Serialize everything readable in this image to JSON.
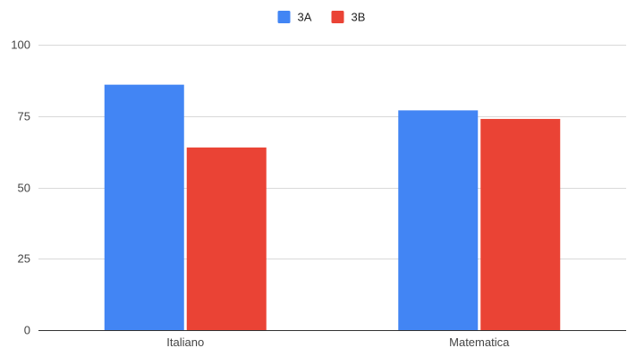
{
  "chart_data": {
    "type": "bar",
    "title": "",
    "xlabel": "",
    "ylabel": "",
    "categories": [
      "Italiano",
      "Matematica"
    ],
    "series": [
      {
        "name": "3A",
        "color": "#4285F4",
        "values": [
          86,
          77
        ]
      },
      {
        "name": "3B",
        "color": "#EA4335",
        "values": [
          64,
          74
        ]
      }
    ],
    "ylim": [
      0,
      100
    ],
    "yticks": [
      0,
      25,
      50,
      75,
      100
    ],
    "grid": true,
    "legend_position": "top-center"
  }
}
